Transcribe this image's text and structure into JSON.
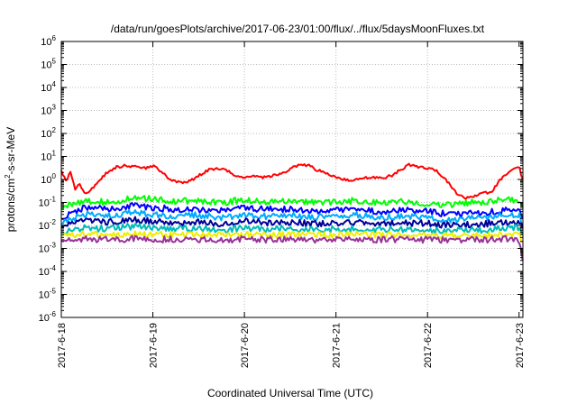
{
  "chart_data": {
    "type": "line",
    "title": "/data/run/goesPlots/archive/2017-06-23/01:00/flux/../flux/5daysMoonFluxes.txt",
    "xlabel": "Coordinated Universal Time (UTC)",
    "ylabel_parts": [
      "protons/cm",
      "2",
      "-s-sr-MeV"
    ],
    "x_range": [
      "2017-06-18 00:00",
      "2017-06-23 01:00"
    ],
    "x_ticks": [
      "2017-6-18",
      "2017-6-19",
      "2017-6-20",
      "2017-6-21",
      "2017-6-22",
      "2017-6-23"
    ],
    "y_scale": "log",
    "ylim": [
      1e-06,
      1000000.0
    ],
    "y_ticks": [
      {
        "base": "10",
        "exp": "-6"
      },
      {
        "base": "10",
        "exp": "-5"
      },
      {
        "base": "10",
        "exp": "-4"
      },
      {
        "base": "10",
        "exp": "-3"
      },
      {
        "base": "10",
        "exp": "-2"
      },
      {
        "base": "10",
        "exp": "-1"
      },
      {
        "base": "10",
        "exp": "0"
      },
      {
        "base": "10",
        "exp": "1"
      },
      {
        "base": "10",
        "exp": "2"
      },
      {
        "base": "10",
        "exp": "3"
      },
      {
        "base": "10",
        "exp": "4"
      },
      {
        "base": "10",
        "exp": "5"
      },
      {
        "base": "10",
        "exp": "6"
      }
    ],
    "grid": true,
    "series": [
      {
        "color": "#ff0000",
        "day": [
          0.0,
          0.05,
          0.1,
          0.15,
          0.2,
          0.25,
          0.3,
          0.4,
          0.5,
          0.6,
          0.7,
          0.8,
          0.9,
          1.0,
          1.1,
          1.2,
          1.3,
          1.4,
          1.5,
          1.6,
          1.7,
          1.8,
          1.9,
          2.0,
          2.1,
          2.2,
          2.3,
          2.4,
          2.5,
          2.6,
          2.7,
          2.8,
          2.9,
          3.0,
          3.1,
          3.2,
          3.3,
          3.4,
          3.5,
          3.6,
          3.7,
          3.8,
          3.9,
          4.0,
          4.1,
          4.2,
          4.3,
          4.4,
          4.5,
          4.6,
          4.7,
          4.8,
          4.9,
          5.0,
          5.04
        ],
        "values": [
          2.5,
          0.8,
          2.0,
          0.4,
          0.6,
          0.3,
          0.25,
          0.8,
          2.0,
          3.5,
          4.0,
          3.5,
          3.0,
          4.0,
          2.0,
          1.0,
          0.7,
          0.8,
          1.5,
          2.5,
          3.0,
          2.5,
          1.5,
          1.2,
          1.5,
          1.2,
          1.4,
          1.8,
          2.8,
          4.5,
          4.0,
          2.5,
          1.8,
          1.2,
          1.0,
          0.9,
          1.1,
          1.3,
          1.2,
          1.4,
          2.5,
          4.5,
          3.5,
          3.0,
          2.5,
          1.0,
          0.3,
          0.15,
          0.18,
          0.25,
          0.3,
          1.0,
          2.5,
          3.5,
          1.0
        ]
      },
      {
        "color": "#00ff00",
        "day": [
          0.0,
          0.25,
          0.5,
          0.75,
          1.0,
          1.25,
          1.5,
          1.75,
          2.0,
          2.25,
          2.5,
          2.75,
          3.0,
          3.25,
          3.5,
          3.75,
          4.0,
          4.25,
          4.5,
          4.75,
          5.0,
          5.04
        ],
        "values": [
          0.06,
          0.12,
          0.1,
          0.14,
          0.15,
          0.11,
          0.12,
          0.1,
          0.13,
          0.11,
          0.12,
          0.1,
          0.11,
          0.12,
          0.1,
          0.11,
          0.09,
          0.08,
          0.1,
          0.12,
          0.13,
          0.06
        ]
      },
      {
        "color": "#0000ff",
        "day": [
          0.0,
          0.25,
          0.5,
          0.75,
          1.0,
          1.25,
          1.5,
          1.75,
          2.0,
          2.25,
          2.5,
          2.75,
          3.0,
          3.25,
          3.5,
          3.75,
          4.0,
          4.25,
          4.5,
          4.75,
          5.0,
          5.04
        ],
        "values": [
          0.02,
          0.06,
          0.05,
          0.07,
          0.06,
          0.05,
          0.05,
          0.045,
          0.055,
          0.05,
          0.05,
          0.04,
          0.045,
          0.05,
          0.04,
          0.045,
          0.04,
          0.03,
          0.035,
          0.04,
          0.05,
          0.02
        ]
      },
      {
        "color": "#00aaff",
        "day": [
          0.0,
          0.25,
          0.5,
          0.75,
          1.0,
          1.25,
          1.5,
          1.75,
          2.0,
          2.25,
          2.5,
          2.75,
          3.0,
          3.25,
          3.5,
          3.75,
          4.0,
          4.25,
          4.5,
          4.75,
          5.0,
          5.04
        ],
        "values": [
          0.012,
          0.03,
          0.025,
          0.035,
          0.03,
          0.025,
          0.028,
          0.022,
          0.03,
          0.025,
          0.028,
          0.022,
          0.025,
          0.028,
          0.022,
          0.025,
          0.022,
          0.018,
          0.02,
          0.025,
          0.03,
          0.012
        ]
      },
      {
        "color": "#000099",
        "day": [
          0.0,
          0.25,
          0.5,
          0.75,
          1.0,
          1.25,
          1.5,
          1.75,
          2.0,
          2.25,
          2.5,
          2.75,
          3.0,
          3.25,
          3.5,
          3.75,
          4.0,
          4.25,
          4.5,
          4.75,
          5.0,
          5.04
        ],
        "values": [
          0.009,
          0.016,
          0.014,
          0.018,
          0.015,
          0.013,
          0.014,
          0.012,
          0.015,
          0.013,
          0.014,
          0.012,
          0.013,
          0.014,
          0.012,
          0.013,
          0.012,
          0.01,
          0.011,
          0.013,
          0.015,
          0.008
        ]
      },
      {
        "color": "#00bbbb",
        "day": [
          0.0,
          0.25,
          0.5,
          0.75,
          1.0,
          1.25,
          1.5,
          1.75,
          2.0,
          2.25,
          2.5,
          2.75,
          3.0,
          3.25,
          3.5,
          3.75,
          4.0,
          4.25,
          4.5,
          4.75,
          5.0,
          5.04
        ],
        "values": [
          0.005,
          0.008,
          0.007,
          0.009,
          0.008,
          0.007,
          0.0075,
          0.0065,
          0.008,
          0.007,
          0.0075,
          0.0065,
          0.007,
          0.0075,
          0.0065,
          0.007,
          0.0065,
          0.006,
          0.0062,
          0.007,
          0.008,
          0.004
        ]
      },
      {
        "color": "#eeee00",
        "day": [
          0.0,
          0.25,
          0.5,
          0.75,
          1.0,
          1.25,
          1.5,
          1.75,
          2.0,
          2.25,
          2.5,
          2.75,
          3.0,
          3.25,
          3.5,
          3.75,
          4.0,
          4.25,
          4.5,
          4.75,
          5.0,
          5.04
        ],
        "values": [
          0.0035,
          0.004,
          0.0038,
          0.0042,
          0.004,
          0.0038,
          0.004,
          0.0038,
          0.004,
          0.0039,
          0.004,
          0.0038,
          0.0039,
          0.004,
          0.0038,
          0.0039,
          0.0038,
          0.0037,
          0.0038,
          0.0039,
          0.004,
          0.002
        ]
      },
      {
        "color": "#993399",
        "day": [
          0.0,
          0.25,
          0.5,
          0.75,
          1.0,
          1.25,
          1.5,
          1.75,
          2.0,
          2.25,
          2.5,
          2.75,
          3.0,
          3.25,
          3.5,
          3.75,
          4.0,
          4.25,
          4.5,
          4.75,
          5.0,
          5.04
        ],
        "values": [
          0.0022,
          0.0025,
          0.0024,
          0.0026,
          0.0025,
          0.0024,
          0.0025,
          0.0024,
          0.0025,
          0.0024,
          0.0025,
          0.0024,
          0.0024,
          0.0025,
          0.0024,
          0.0025,
          0.0024,
          0.0023,
          0.0024,
          0.0025,
          0.0025,
          0.0003
        ]
      }
    ]
  }
}
